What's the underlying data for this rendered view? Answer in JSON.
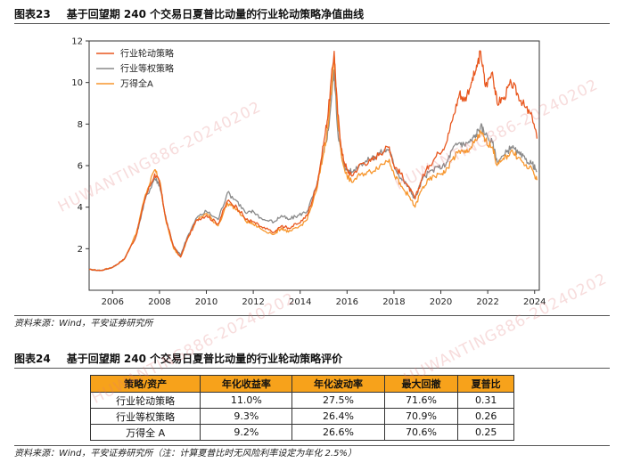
{
  "fig23": {
    "number": "图表23",
    "title": "基于回望期 240 个交易日夏普比动量的行业轮动策略净值曲线",
    "source": "资料来源：Wind，平安证券研究所"
  },
  "chart_data": {
    "type": "line",
    "title": "",
    "xlabel": "",
    "ylabel": "",
    "xlim": [
      2005.0,
      2024.2
    ],
    "ylim": [
      0,
      12
    ],
    "x_ticks": [
      "2006",
      "2008",
      "2010",
      "2012",
      "2014",
      "2016",
      "2018",
      "2020",
      "2022",
      "2024"
    ],
    "y_ticks": [
      "2",
      "4",
      "6",
      "8",
      "10",
      "12"
    ],
    "grid": false,
    "legend_position": "top-left",
    "series": [
      {
        "name": "行业轮动策略",
        "color": "#e8571e",
        "x": [
          2005.0,
          2005.5,
          2006.0,
          2006.5,
          2007.0,
          2007.4,
          2007.8,
          2008.0,
          2008.3,
          2008.6,
          2008.9,
          2009.2,
          2009.6,
          2010.0,
          2010.5,
          2010.9,
          2011.3,
          2011.7,
          2012.0,
          2012.4,
          2012.9,
          2013.2,
          2013.5,
          2013.9,
          2014.3,
          2014.7,
          2015.0,
          2015.2,
          2015.45,
          2015.6,
          2015.8,
          2016.0,
          2016.2,
          2016.6,
          2017.0,
          2017.4,
          2017.8,
          2018.0,
          2018.3,
          2018.6,
          2018.9,
          2019.2,
          2019.5,
          2019.9,
          2020.2,
          2020.5,
          2020.8,
          2021.0,
          2021.3,
          2021.5,
          2021.7,
          2021.9,
          2022.2,
          2022.4,
          2022.7,
          2023.0,
          2023.3,
          2023.6,
          2023.9,
          2024.1
        ],
        "values": [
          1.0,
          0.95,
          1.1,
          1.5,
          2.6,
          4.5,
          5.6,
          5.2,
          3.3,
          2.1,
          1.6,
          2.5,
          3.4,
          3.6,
          3.2,
          4.3,
          4.0,
          3.4,
          3.3,
          3.0,
          2.8,
          3.1,
          3.0,
          3.2,
          3.6,
          5.0,
          7.0,
          8.6,
          11.5,
          8.5,
          6.5,
          5.8,
          5.5,
          6.1,
          6.2,
          6.6,
          6.9,
          6.0,
          5.6,
          5.0,
          4.4,
          5.4,
          6.0,
          6.6,
          7.0,
          8.2,
          9.5,
          9.1,
          10.0,
          10.6,
          11.5,
          9.8,
          10.5,
          9.0,
          9.3,
          10.0,
          9.4,
          8.8,
          8.3,
          7.3
        ]
      },
      {
        "name": "行业等权策略",
        "color": "#8a8a8a",
        "x": [
          2005.0,
          2005.5,
          2006.0,
          2006.5,
          2007.0,
          2007.4,
          2007.8,
          2008.0,
          2008.3,
          2008.6,
          2008.9,
          2009.2,
          2009.6,
          2010.0,
          2010.5,
          2010.9,
          2011.3,
          2011.7,
          2012.0,
          2012.4,
          2012.9,
          2013.2,
          2013.5,
          2013.9,
          2014.3,
          2014.7,
          2015.0,
          2015.2,
          2015.45,
          2015.6,
          2015.8,
          2016.0,
          2016.2,
          2016.6,
          2017.0,
          2017.4,
          2017.8,
          2018.0,
          2018.3,
          2018.6,
          2018.9,
          2019.2,
          2019.5,
          2019.9,
          2020.2,
          2020.5,
          2020.8,
          2021.0,
          2021.3,
          2021.5,
          2021.7,
          2021.9,
          2022.2,
          2022.4,
          2022.7,
          2023.0,
          2023.3,
          2023.6,
          2023.9,
          2024.1
        ],
        "values": [
          1.0,
          0.95,
          1.1,
          1.5,
          2.6,
          4.4,
          5.4,
          5.1,
          3.3,
          2.1,
          1.7,
          2.6,
          3.5,
          3.8,
          3.4,
          4.7,
          4.3,
          3.7,
          3.8,
          3.4,
          3.3,
          3.6,
          3.4,
          3.6,
          3.8,
          5.0,
          6.6,
          7.7,
          10.6,
          7.7,
          6.2,
          5.8,
          5.7,
          6.1,
          6.3,
          6.6,
          6.8,
          6.0,
          5.4,
          5.0,
          4.4,
          5.3,
          5.7,
          5.9,
          6.0,
          6.8,
          7.1,
          7.0,
          7.2,
          7.5,
          7.9,
          7.5,
          7.1,
          6.2,
          6.5,
          6.9,
          6.6,
          6.3,
          6.1,
          5.7
        ]
      },
      {
        "name": "万得全A",
        "color": "#f7962d",
        "x": [
          2005.0,
          2005.5,
          2006.0,
          2006.5,
          2007.0,
          2007.4,
          2007.8,
          2008.0,
          2008.3,
          2008.6,
          2008.9,
          2009.2,
          2009.6,
          2010.0,
          2010.5,
          2010.9,
          2011.3,
          2011.7,
          2012.0,
          2012.4,
          2012.9,
          2013.2,
          2013.5,
          2013.9,
          2014.3,
          2014.7,
          2015.0,
          2015.2,
          2015.45,
          2015.6,
          2015.8,
          2016.0,
          2016.2,
          2016.6,
          2017.0,
          2017.4,
          2017.8,
          2018.0,
          2018.3,
          2018.6,
          2018.9,
          2019.2,
          2019.5,
          2019.9,
          2020.2,
          2020.5,
          2020.8,
          2021.0,
          2021.3,
          2021.5,
          2021.7,
          2021.9,
          2022.2,
          2022.4,
          2022.7,
          2023.0,
          2023.3,
          2023.6,
          2023.9,
          2024.1
        ],
        "values": [
          1.0,
          0.95,
          1.1,
          1.5,
          2.7,
          4.6,
          5.8,
          5.3,
          3.2,
          2.0,
          1.6,
          2.5,
          3.4,
          3.7,
          3.1,
          4.2,
          3.9,
          3.3,
          3.2,
          2.9,
          2.7,
          3.0,
          2.8,
          3.0,
          3.4,
          4.8,
          6.6,
          8.0,
          11.3,
          8.2,
          6.2,
          5.5,
          5.2,
          5.6,
          5.7,
          6.0,
          6.3,
          5.6,
          5.0,
          4.6,
          4.0,
          4.9,
          5.3,
          5.6,
          5.7,
          6.3,
          6.7,
          6.6,
          6.9,
          7.2,
          7.6,
          7.2,
          6.9,
          6.0,
          6.3,
          6.7,
          6.4,
          6.0,
          5.8,
          5.3
        ]
      }
    ]
  },
  "fig24": {
    "number": "图表24",
    "title": "基于回望期 240 个交易日夏普比动量的行业轮动策略评价",
    "source": "资料来源：Wind，平安证券研究所（注：计算夏普比时无风险利率设定为年化 2.5%）",
    "headers": [
      "策略/资产",
      "年化收益率",
      "年化波动率",
      "最大回撤",
      "夏普比"
    ],
    "rows": [
      [
        "行业轮动策略",
        "11.0%",
        "27.5%",
        "71.6%",
        "0.31"
      ],
      [
        "行业等权策略",
        "9.3%",
        "26.4%",
        "70.9%",
        "0.26"
      ],
      [
        "万得全 A",
        "9.2%",
        "26.6%",
        "70.6%",
        "0.25"
      ]
    ]
  },
  "watermark": "HUWANTING886-20240202"
}
